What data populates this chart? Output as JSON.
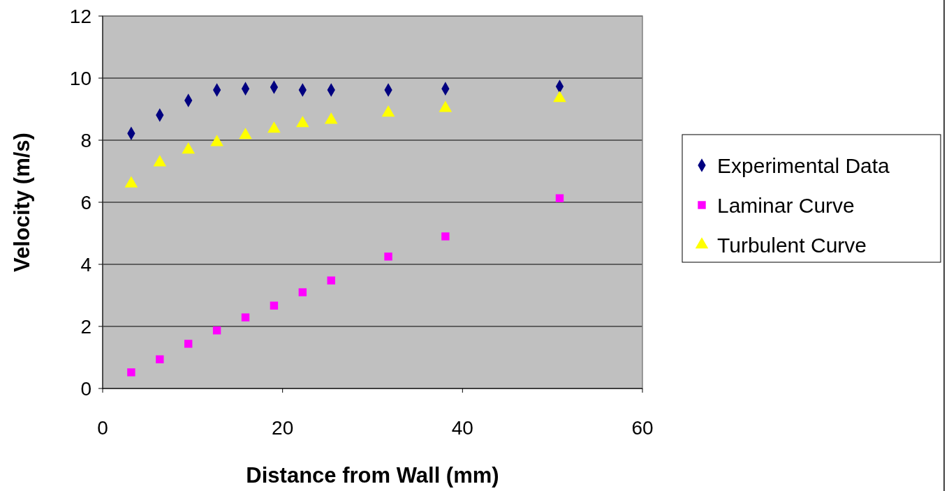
{
  "chart_data": {
    "type": "scatter",
    "xlabel": "Distance from Wall (mm)",
    "ylabel": "Velocity (m/s)",
    "xlim": [
      0,
      60
    ],
    "xticks": [
      0,
      20,
      40,
      60
    ],
    "ylim": [
      0,
      12
    ],
    "yticks": [
      0,
      2,
      4,
      6,
      8,
      10,
      12
    ],
    "grid": "y",
    "legend": "right",
    "x": [
      3.175,
      6.35,
      9.525,
      12.7,
      15.875,
      19.05,
      22.225,
      25.4,
      31.75,
      38.1,
      50.8
    ],
    "series": [
      {
        "name": "Experimental Data",
        "color": "#000080",
        "marker": "diamond",
        "values": [
          8.22,
          8.81,
          9.28,
          9.62,
          9.66,
          9.71,
          9.62,
          9.62,
          9.62,
          9.66,
          9.73
        ]
      },
      {
        "name": "Laminar Curve",
        "color": "#ff00ff",
        "marker": "square",
        "values": [
          0.52,
          0.94,
          1.44,
          1.87,
          2.29,
          2.67,
          3.1,
          3.48,
          4.25,
          4.9,
          6.13
        ]
      },
      {
        "name": "Turbulent Curve",
        "color": "#ffff00",
        "marker": "triangle",
        "values": [
          6.6,
          7.28,
          7.69,
          7.93,
          8.16,
          8.36,
          8.54,
          8.65,
          8.88,
          9.03,
          9.35
        ]
      }
    ]
  }
}
